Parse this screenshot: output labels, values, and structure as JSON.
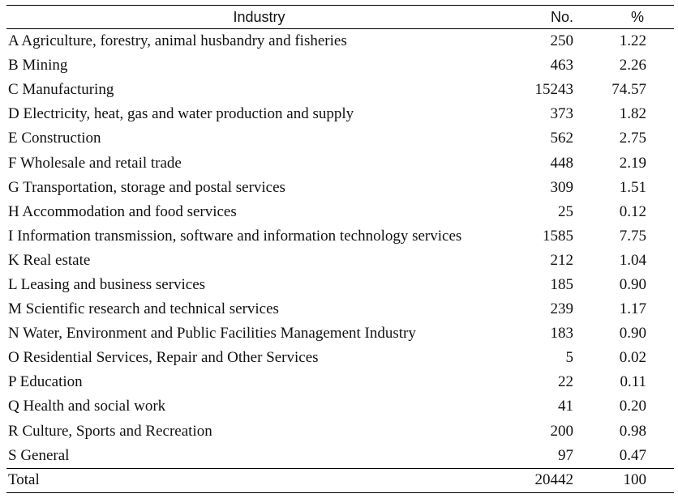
{
  "table": {
    "headers": {
      "industry": "Industry",
      "no": "No.",
      "pct": "%"
    },
    "rows": [
      {
        "industry": "A Agriculture, forestry, animal husbandry and fisheries",
        "no": "250",
        "pct": "1.22"
      },
      {
        "industry": "B Mining",
        "no": "463",
        "pct": "2.26"
      },
      {
        "industry": "C Manufacturing",
        "no": "15243",
        "pct": "74.57"
      },
      {
        "industry": "D Electricity, heat, gas and water production and supply",
        "no": "373",
        "pct": "1.82"
      },
      {
        "industry": "E Construction",
        "no": "562",
        "pct": "2.75"
      },
      {
        "industry": "F Wholesale and retail trade",
        "no": "448",
        "pct": "2.19"
      },
      {
        "industry": "G Transportation, storage and postal services",
        "no": "309",
        "pct": "1.51"
      },
      {
        "industry": "H Accommodation and food services",
        "no": "25",
        "pct": "0.12"
      },
      {
        "industry": "I Information transmission, software and information technology services",
        "no": "1585",
        "pct": "7.75"
      },
      {
        "industry": "K Real estate",
        "no": "212",
        "pct": "1.04"
      },
      {
        "industry": "L Leasing and business services",
        "no": "185",
        "pct": "0.90"
      },
      {
        "industry": "M Scientific research and technical services",
        "no": "239",
        "pct": "1.17"
      },
      {
        "industry": "N Water, Environment and Public Facilities Management Industry",
        "no": "183",
        "pct": "0.90"
      },
      {
        "industry": "O Residential Services, Repair and Other Services",
        "no": "5",
        "pct": "0.02"
      },
      {
        "industry": "P Education",
        "no": "22",
        "pct": "0.11"
      },
      {
        "industry": "Q Health and social work",
        "no": "41",
        "pct": "0.20"
      },
      {
        "industry": "R Culture, Sports and Recreation",
        "no": "200",
        "pct": "0.98"
      },
      {
        "industry": "S General",
        "no": "97",
        "pct": "0.47"
      }
    ],
    "total": {
      "industry": "Total",
      "no": "20442",
      "pct": "100"
    }
  }
}
